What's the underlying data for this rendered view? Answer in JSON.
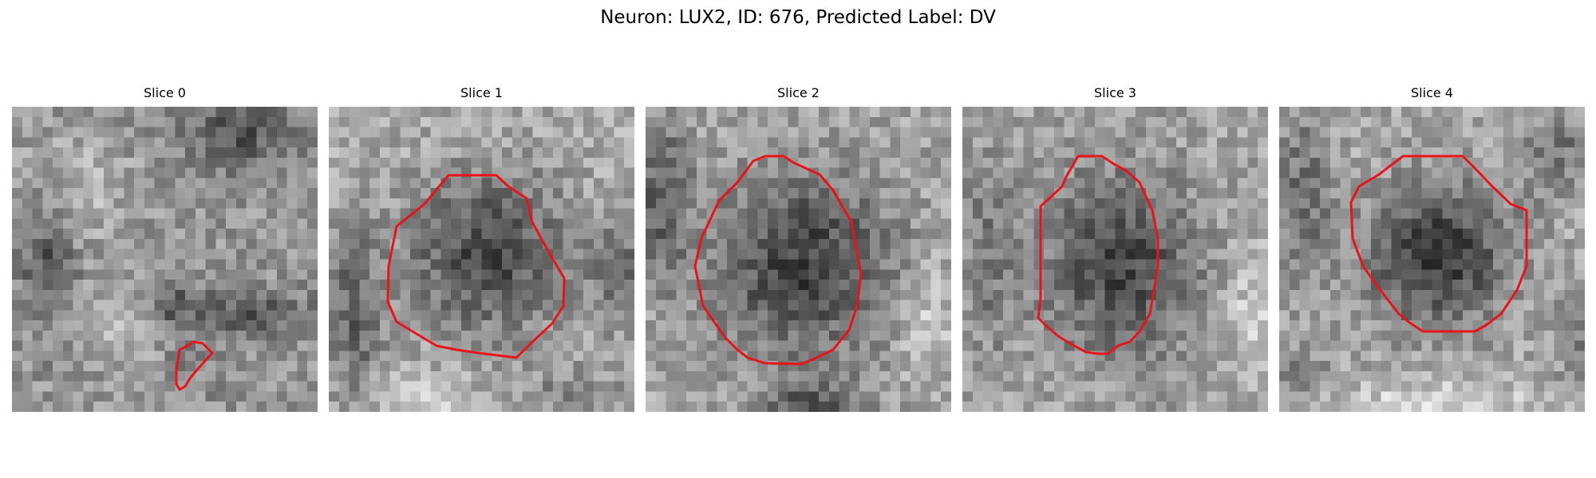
{
  "figure": {
    "title": "Neuron: LUX2, ID: 676, Predicted Label: DV"
  },
  "colors": {
    "background": "#ffffff",
    "contour": "#e8141a"
  },
  "panels": [
    {
      "title": "Slice 0",
      "image": "grayscale-microscopy-slice"
    },
    {
      "title": "Slice 1",
      "image": "grayscale-microscopy-slice"
    },
    {
      "title": "Slice 2",
      "image": "grayscale-microscopy-slice"
    },
    {
      "title": "Slice 3",
      "image": "grayscale-microscopy-slice"
    },
    {
      "title": "Slice 4",
      "image": "grayscale-microscopy-slice"
    }
  ]
}
